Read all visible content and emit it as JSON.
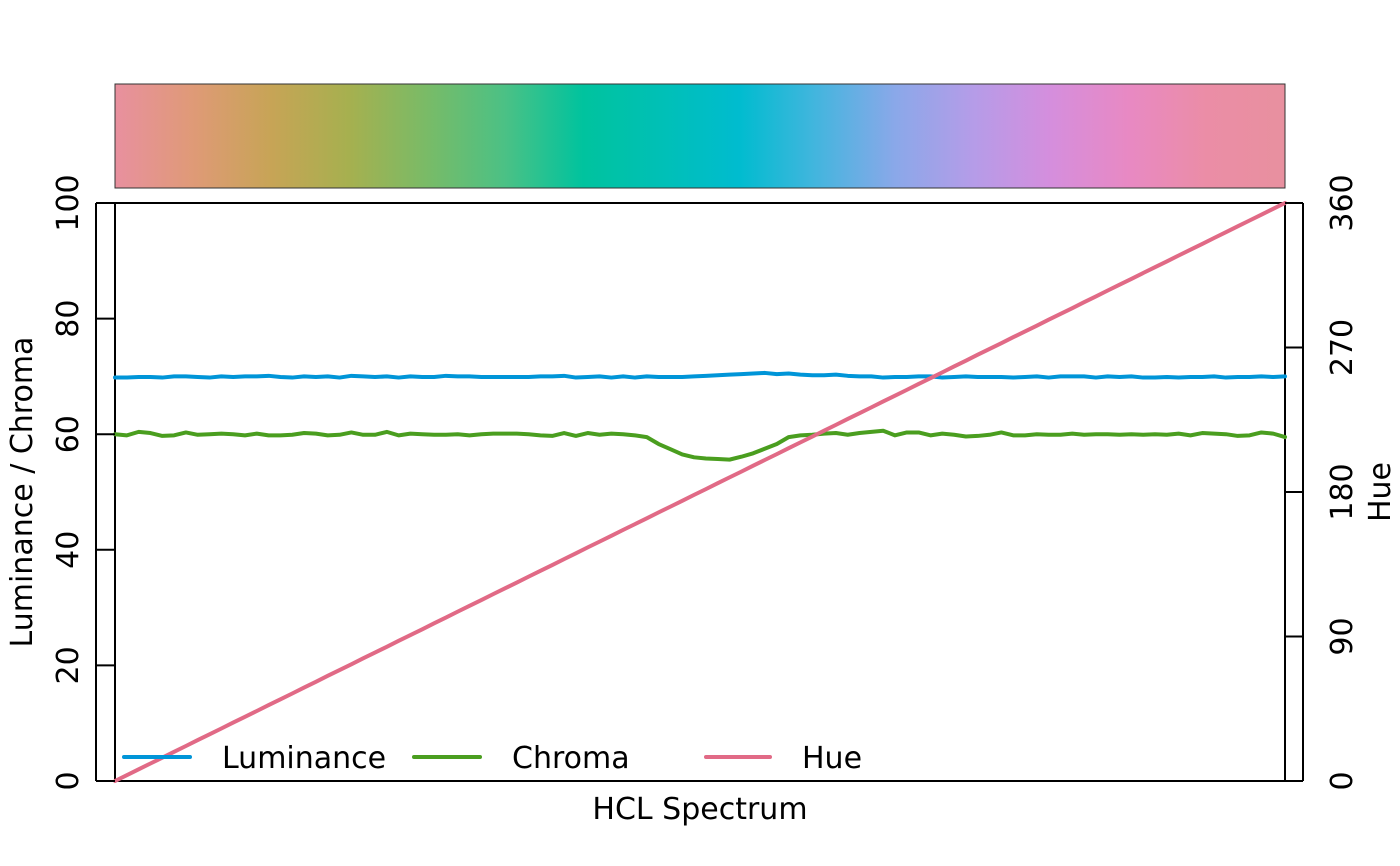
{
  "chart_data": {
    "type": "line",
    "xlabel": "HCL Spectrum",
    "ylabel_left": "Luminance / Chroma",
    "ylabel_right": "Hue",
    "ylim_left": [
      0,
      100
    ],
    "ylim_right": [
      0,
      360
    ],
    "yticks_left": [
      "0",
      "20",
      "40",
      "60",
      "80",
      "100"
    ],
    "yticks_right": [
      "0",
      "90",
      "180",
      "270",
      "360"
    ],
    "n_points": 100,
    "grid": false,
    "legend_position": "bottom-left",
    "series": [
      {
        "name": "Luminance",
        "axis": "left",
        "color": "#0095D8",
        "values": [
          69.8,
          69.8,
          69.9,
          69.9,
          69.8,
          70.0,
          70.0,
          69.9,
          69.8,
          70.0,
          69.9,
          70.0,
          70.0,
          70.1,
          69.9,
          69.8,
          70.0,
          69.9,
          70.0,
          69.8,
          70.1,
          70.0,
          69.9,
          70.0,
          69.8,
          70.0,
          69.9,
          69.9,
          70.1,
          70.0,
          70.0,
          69.9,
          69.9,
          69.9,
          69.9,
          69.9,
          70.0,
          70.0,
          70.1,
          69.8,
          69.9,
          70.0,
          69.8,
          70.0,
          69.8,
          70.0,
          69.9,
          69.9,
          69.9,
          70.0,
          70.1,
          70.2,
          70.3,
          70.4,
          70.5,
          70.6,
          70.4,
          70.5,
          70.3,
          70.2,
          70.2,
          70.3,
          70.1,
          70.0,
          70.0,
          69.8,
          69.9,
          69.9,
          70.0,
          70.0,
          69.8,
          69.9,
          70.0,
          69.9,
          69.9,
          69.9,
          69.8,
          69.9,
          70.0,
          69.8,
          70.0,
          70.0,
          70.0,
          69.8,
          70.0,
          69.9,
          70.0,
          69.8,
          69.8,
          69.9,
          69.8,
          69.9,
          69.9,
          70.0,
          69.8,
          69.9,
          69.9,
          70.0,
          69.9,
          70.0
        ]
      },
      {
        "name": "Chroma",
        "axis": "left",
        "color": "#4A9E1F",
        "values": [
          60.0,
          59.8,
          60.4,
          60.2,
          59.7,
          59.8,
          60.3,
          59.9,
          60.0,
          60.1,
          60.0,
          59.8,
          60.1,
          59.8,
          59.8,
          59.9,
          60.2,
          60.1,
          59.8,
          59.9,
          60.3,
          59.9,
          59.9,
          60.4,
          59.8,
          60.1,
          60.0,
          59.9,
          59.9,
          60.0,
          59.8,
          60.0,
          60.1,
          60.1,
          60.1,
          60.0,
          59.8,
          59.7,
          60.2,
          59.7,
          60.2,
          59.9,
          60.1,
          60.0,
          59.8,
          59.5,
          58.3,
          57.4,
          56.5,
          56.0,
          55.8,
          55.7,
          55.6,
          56.1,
          56.7,
          57.5,
          58.3,
          59.5,
          59.8,
          59.9,
          60.1,
          60.2,
          59.9,
          60.2,
          60.4,
          60.6,
          59.8,
          60.3,
          60.3,
          59.8,
          60.1,
          59.9,
          59.6,
          59.7,
          59.9,
          60.3,
          59.8,
          59.8,
          60.0,
          59.9,
          59.9,
          60.1,
          59.9,
          60.0,
          60.0,
          59.9,
          60.0,
          59.9,
          60.0,
          59.9,
          60.1,
          59.8,
          60.2,
          60.1,
          60.0,
          59.7,
          59.8,
          60.3,
          60.1,
          59.5
        ]
      },
      {
        "name": "Hue",
        "axis": "right",
        "color": "#E16A86",
        "values": [
          0.0,
          3.6,
          7.3,
          10.9,
          14.5,
          18.2,
          21.8,
          25.5,
          29.1,
          32.7,
          36.4,
          40.0,
          43.6,
          47.3,
          50.9,
          54.5,
          58.2,
          61.8,
          65.5,
          69.1,
          72.7,
          76.4,
          80.0,
          83.6,
          87.3,
          90.9,
          94.5,
          98.2,
          101.8,
          105.5,
          109.1,
          112.7,
          116.4,
          120.0,
          123.6,
          127.3,
          130.9,
          134.5,
          138.2,
          141.8,
          145.5,
          149.1,
          152.7,
          156.4,
          160.0,
          163.6,
          167.3,
          170.9,
          174.5,
          178.2,
          181.8,
          185.5,
          189.1,
          192.7,
          196.4,
          200.0,
          203.6,
          207.3,
          210.9,
          214.5,
          218.2,
          221.8,
          225.5,
          229.1,
          232.7,
          236.4,
          240.0,
          243.6,
          247.3,
          250.9,
          254.5,
          258.2,
          261.8,
          265.5,
          269.1,
          272.7,
          276.4,
          280.0,
          283.6,
          287.3,
          290.9,
          294.5,
          298.2,
          301.8,
          305.5,
          309.1,
          312.7,
          316.4,
          320.0,
          323.6,
          327.3,
          330.9,
          334.5,
          338.2,
          341.8,
          345.5,
          349.1,
          352.7,
          356.4,
          360.0
        ]
      }
    ],
    "spectrum_bar": {
      "color_stops": [
        "#E8909F",
        "#DF9A77",
        "#C7A456",
        "#A6B04F",
        "#79BB67",
        "#4BC185",
        "#00C39E",
        "#00C0B6",
        "#00BCCF",
        "#44B5DE",
        "#8AA8E9",
        "#B59CE8",
        "#D58EDD",
        "#E889C3",
        "#EB8DA6",
        "#E8909F"
      ]
    }
  }
}
